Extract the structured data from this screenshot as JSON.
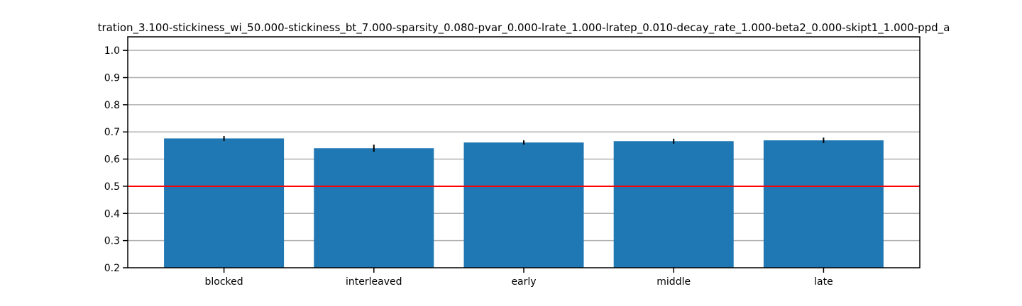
{
  "chart_data": {
    "type": "bar",
    "title": "tration_3.100-stickiness_wi_50.000-stickiness_bt_7.000-sparsity_0.080-pvar_0.000-lrate_1.000-lratep_0.010-decay_rate_1.000-beta2_0.000-skipt1_1.000-ppd_a",
    "xlabel": "",
    "ylabel": "",
    "categories": [
      "blocked",
      "interleaved",
      "early",
      "middle",
      "late"
    ],
    "values": [
      0.676,
      0.64,
      0.661,
      0.666,
      0.669
    ],
    "errors": [
      0.009,
      0.013,
      0.008,
      0.009,
      0.01
    ],
    "ylim": [
      0.2,
      1.05
    ],
    "yticks": [
      "0.2",
      "0.3",
      "0.4",
      "0.5",
      "0.6",
      "0.7",
      "0.8",
      "0.9",
      "1.0"
    ],
    "reference_line": 0.5,
    "grid": "horizontal",
    "colors": {
      "bar": "#1f77b4",
      "reference_line": "#ff0000",
      "grid": "#b0b0b0",
      "error_bar": "#000000"
    }
  }
}
